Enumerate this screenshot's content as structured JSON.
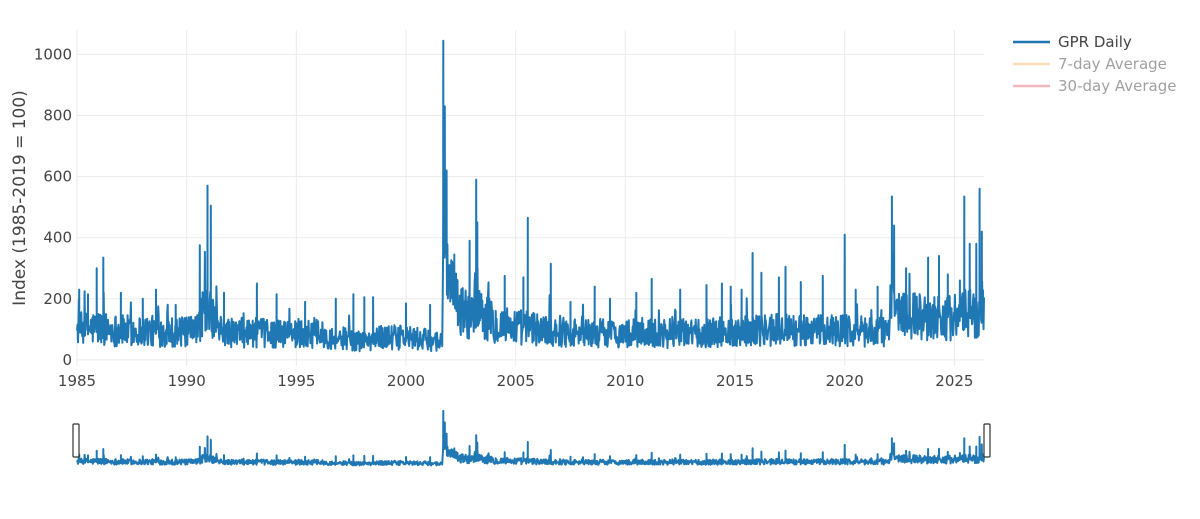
{
  "chart_data": {
    "type": "line",
    "title": "",
    "ylabel": "Index (1985-2019 = 100)",
    "xlabel": "",
    "xlim": [
      1985.0,
      2026.35
    ],
    "ylim": [
      -20,
      1080
    ],
    "x_ticks": [
      1985,
      1990,
      1995,
      2000,
      2005,
      2010,
      2015,
      2020,
      2025
    ],
    "y_ticks": [
      0,
      200,
      400,
      600,
      800,
      1000
    ],
    "grid": true,
    "legend_position": "top-right",
    "range_slider": true,
    "series": [
      {
        "name": "GPR Daily",
        "color": "#1f77b4",
        "visible": true,
        "baseline": [
          [
            1985.0,
            100
          ],
          [
            1986.0,
            105
          ],
          [
            1987.0,
            95
          ],
          [
            1988.0,
            95
          ],
          [
            1989.0,
            92
          ],
          [
            1990.0,
            90
          ],
          [
            1990.5,
            95
          ],
          [
            1990.7,
            160
          ],
          [
            1991.2,
            140
          ],
          [
            1991.5,
            95
          ],
          [
            1992.0,
            88
          ],
          [
            1993.0,
            90
          ],
          [
            1994.0,
            85
          ],
          [
            1995.0,
            88
          ],
          [
            1996.0,
            82
          ],
          [
            1997.0,
            72
          ],
          [
            1998.0,
            62
          ],
          [
            1999.0,
            75
          ],
          [
            2000.0,
            72
          ],
          [
            2001.0,
            65
          ],
          [
            2001.65,
            60
          ],
          [
            2001.72,
            700
          ],
          [
            2001.8,
            420
          ],
          [
            2002.0,
            220
          ],
          [
            2002.5,
            160
          ],
          [
            2003.0,
            150
          ],
          [
            2003.2,
            210
          ],
          [
            2003.5,
            150
          ],
          [
            2004.0,
            120
          ],
          [
            2005.0,
            110
          ],
          [
            2006.0,
            100
          ],
          [
            2007.0,
            95
          ],
          [
            2008.0,
            88
          ],
          [
            2009.0,
            88
          ],
          [
            2010.0,
            85
          ],
          [
            2011.0,
            90
          ],
          [
            2012.0,
            85
          ],
          [
            2013.0,
            88
          ],
          [
            2014.0,
            90
          ],
          [
            2015.0,
            95
          ],
          [
            2016.0,
            100
          ],
          [
            2017.0,
            100
          ],
          [
            2018.0,
            95
          ],
          [
            2019.0,
            95
          ],
          [
            2020.0,
            100
          ],
          [
            2021.0,
            90
          ],
          [
            2022.0,
            95
          ],
          [
            2022.15,
            260
          ],
          [
            2022.4,
            160
          ],
          [
            2023.0,
            145
          ],
          [
            2024.0,
            140
          ],
          [
            2025.0,
            140
          ],
          [
            2025.45,
            150
          ],
          [
            2026.0,
            150
          ],
          [
            2026.3,
            160
          ]
        ],
        "spikes": [
          [
            1985.1,
            230
          ],
          [
            1985.5,
            215
          ],
          [
            1985.9,
            300
          ],
          [
            1986.2,
            335
          ],
          [
            1987.0,
            220
          ],
          [
            1988.0,
            200
          ],
          [
            1988.6,
            230
          ],
          [
            1989.5,
            180
          ],
          [
            1990.6,
            375
          ],
          [
            1990.95,
            570
          ],
          [
            1991.1,
            505
          ],
          [
            1991.7,
            220
          ],
          [
            1993.2,
            250
          ],
          [
            1994.1,
            215
          ],
          [
            1995.4,
            190
          ],
          [
            1996.8,
            200
          ],
          [
            1997.6,
            215
          ],
          [
            1998.1,
            205
          ],
          [
            1998.5,
            205
          ],
          [
            2000.0,
            185
          ],
          [
            2001.1,
            180
          ],
          [
            2001.7,
            1045
          ],
          [
            2001.77,
            830
          ],
          [
            2001.85,
            620
          ],
          [
            2002.2,
            345
          ],
          [
            2002.9,
            390
          ],
          [
            2003.2,
            590
          ],
          [
            2003.25,
            450
          ],
          [
            2004.5,
            275
          ],
          [
            2005.35,
            270
          ],
          [
            2005.55,
            465
          ],
          [
            2006.6,
            315
          ],
          [
            2007.5,
            190
          ],
          [
            2008.6,
            240
          ],
          [
            2009.3,
            200
          ],
          [
            2010.5,
            220
          ],
          [
            2011.2,
            265
          ],
          [
            2012.5,
            230
          ],
          [
            2013.7,
            245
          ],
          [
            2014.4,
            250
          ],
          [
            2014.8,
            240
          ],
          [
            2015.3,
            230
          ],
          [
            2015.8,
            350
          ],
          [
            2016.2,
            285
          ],
          [
            2017.0,
            270
          ],
          [
            2017.3,
            305
          ],
          [
            2018.0,
            255
          ],
          [
            2019.0,
            275
          ],
          [
            2020.0,
            410
          ],
          [
            2020.5,
            230
          ],
          [
            2021.5,
            240
          ],
          [
            2022.15,
            535
          ],
          [
            2022.25,
            440
          ],
          [
            2022.8,
            300
          ],
          [
            2023.8,
            335
          ],
          [
            2024.3,
            340
          ],
          [
            2024.7,
            280
          ],
          [
            2025.25,
            260
          ],
          [
            2025.45,
            535
          ],
          [
            2025.7,
            380
          ],
          [
            2026.0,
            380
          ],
          [
            2026.15,
            560
          ],
          [
            2026.25,
            420
          ]
        ]
      },
      {
        "name": "7-day Average",
        "color": "#ffbb78",
        "visible": false
      },
      {
        "name": "30-day Average",
        "color": "#e8707b",
        "visible": false
      }
    ]
  }
}
